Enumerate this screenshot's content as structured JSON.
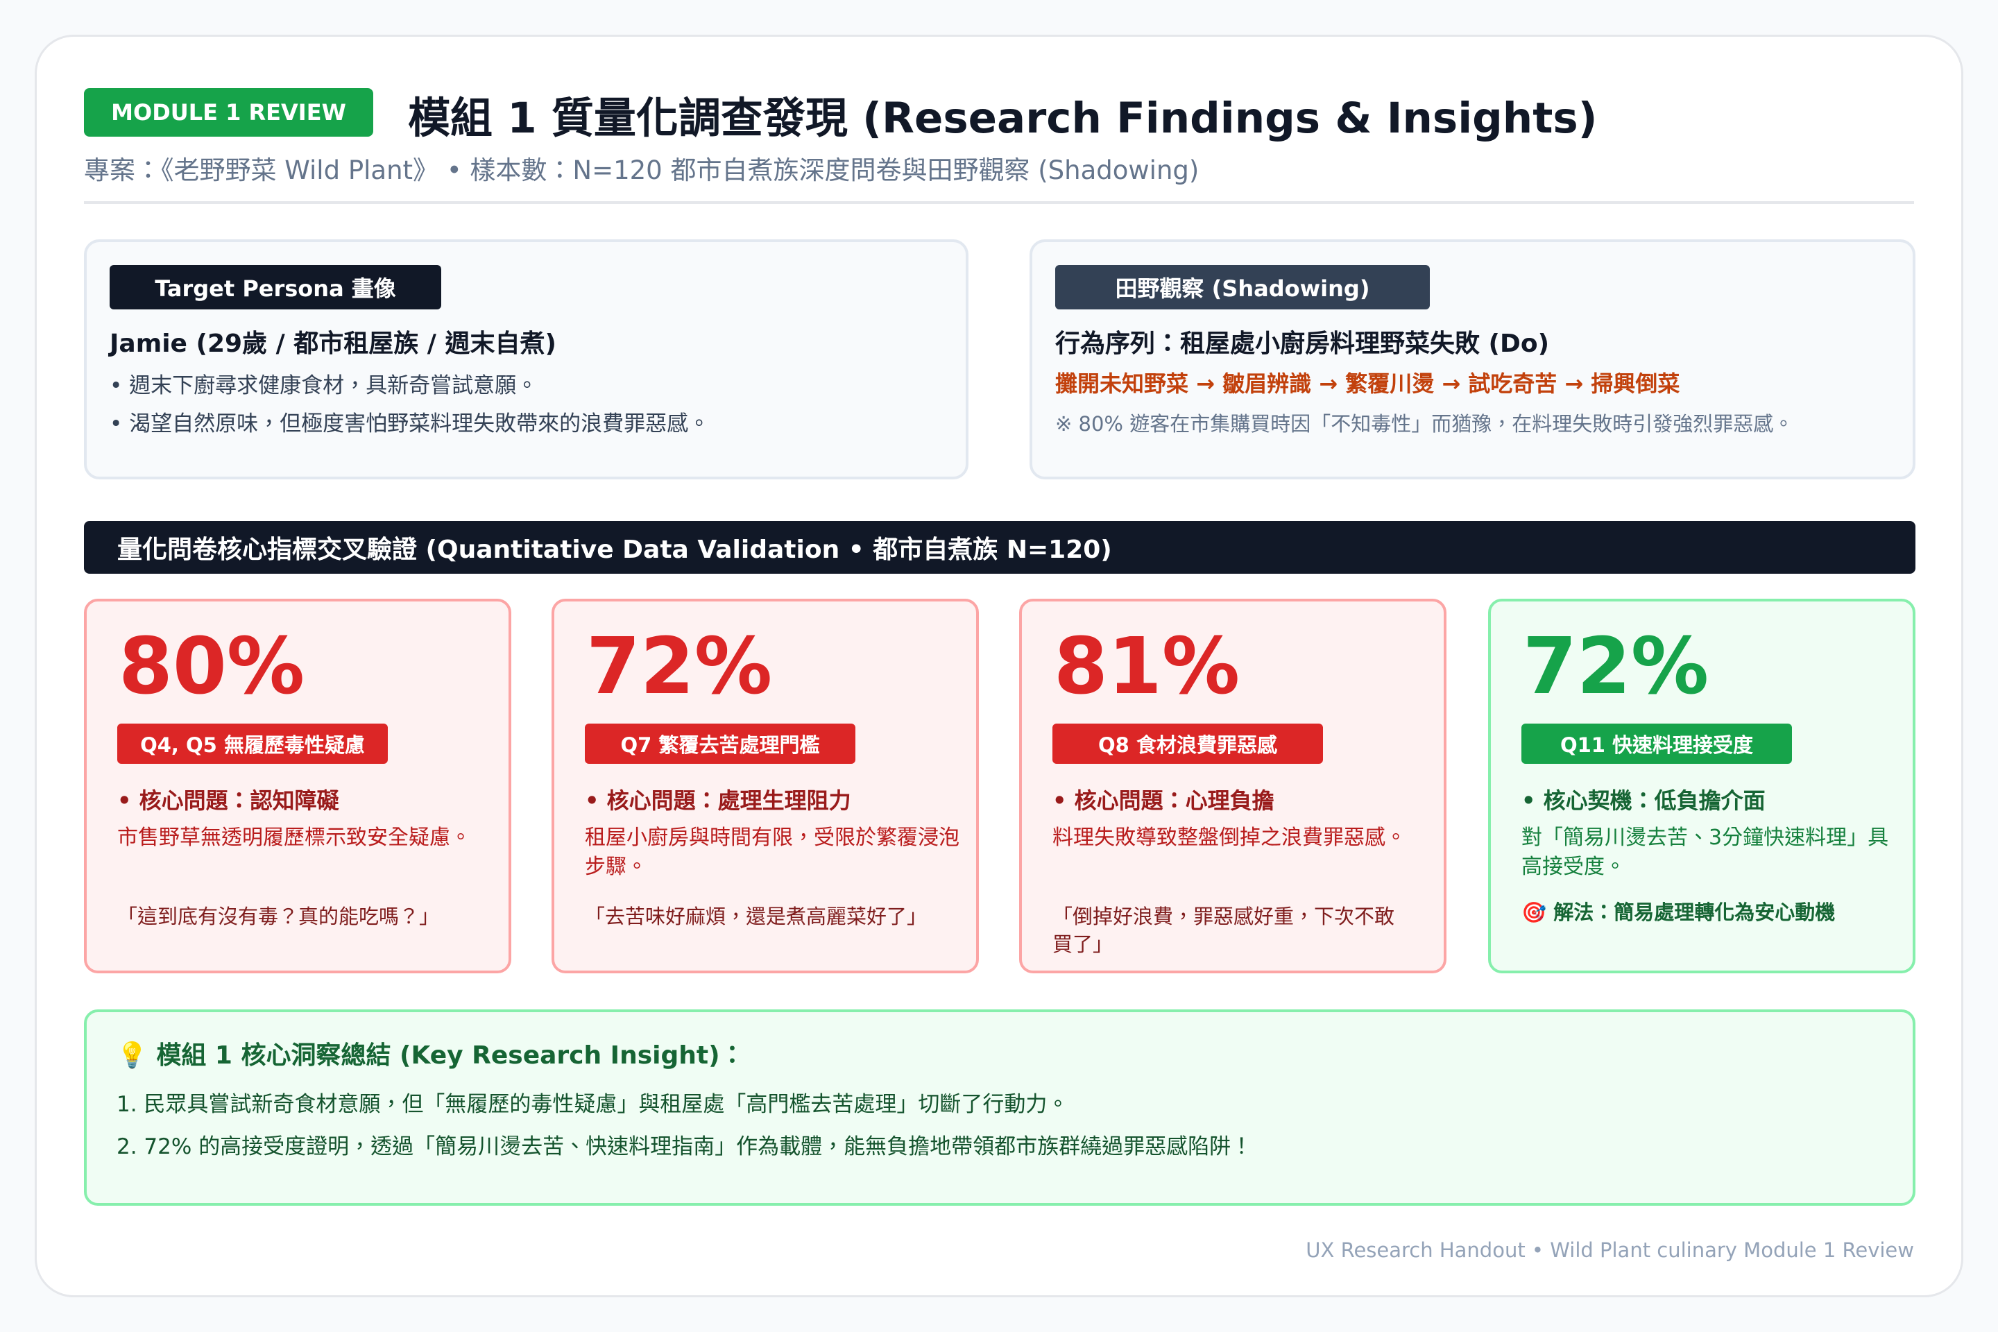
{
  "header": {
    "badge": "MODULE 1 REVIEW",
    "title": "模組 1 質量化調查發現 (Research Findings & Insights)",
    "subtitle": "專案：《老野野菜 Wild Plant》 • 樣本數：N=120 都市自煮族深度問卷與田野觀察 (Shadowing)"
  },
  "persona": {
    "tag": "Target Persona 畫像",
    "name": "Jamie (29歲 / 都市租屋族 / 週末自煮)",
    "bullets": [
      "• 週末下廚尋求健康食材，具新奇嘗試意願。",
      "• 渴望自然原味，但極度害怕野菜料理失敗帶來的浪費罪惡感。"
    ]
  },
  "shadowing": {
    "tag": "田野觀察 (Shadowing)",
    "heading": "行為序列：租屋處小廚房料理野菜失敗 (Do)",
    "sequence": "攤開未知野菜 → 皺眉辨識 → 繁覆川燙 → 試吃奇苦 → 掃興倒菜",
    "note": "※ 80% 遊客在市集購買時因「不知毒性」而猶豫，在料理失敗時引發強烈罪惡感。"
  },
  "quant_bar": "量化問卷核心指標交叉驗證 (Quantitative Data Validation • 都市自煮族 N=120)",
  "stats": [
    {
      "value": "80%",
      "tag": "Q4, Q5 無履歷毒性疑慮",
      "point": "• 核心問題：認知障礙",
      "description": "市售野草無透明履歷標示致安全疑慮。",
      "quote": "「這到底有沒有毒？真的能吃嗎？」"
    },
    {
      "value": "72%",
      "tag": "Q7 繁覆去苦處理門檻",
      "point": "• 核心問題：處理生理阻力",
      "description": "租屋小廚房與時間有限，受限於繁覆浸泡步驟。",
      "quote": "「去苦味好麻煩，還是煮高麗菜好了」"
    },
    {
      "value": "81%",
      "tag": "Q8 食材浪費罪惡感",
      "point": "• 核心問題：心理負擔",
      "description": "料理失敗導致整盤倒掉之浪費罪惡感。",
      "quote": "「倒掉好浪費，罪惡感好重，下次不敢買了」"
    },
    {
      "value": "72%",
      "tag": "Q11 快速料理接受度",
      "point": "• 核心契機：低負擔介面",
      "description": "對「簡易川燙去苦、3分鐘快速料理」具高接受度。",
      "solution": "🎯 解法：簡易處理轉化為安心動機"
    }
  ],
  "insight": {
    "title": "💡 模組 1 核心洞察總結 (Key Research Insight)：",
    "lines": [
      "1. 民眾具嘗試新奇食材意願，但「無履歷的毒性疑慮」與租屋處「高門檻去苦處理」切斷了行動力。",
      "2. 72% 的高接受度證明，透過「簡易川燙去苦、快速料理指南」作為載體，能無負擔地帶領都市族群繞過罪惡感陷阱！"
    ]
  },
  "footer": "UX Research Handout • Wild Plant culinary Module 1 Review"
}
